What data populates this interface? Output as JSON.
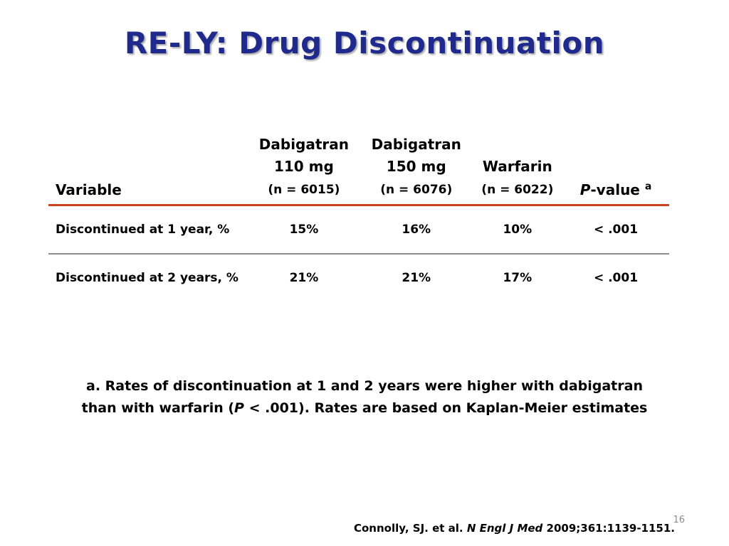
{
  "slide": {
    "title": "RE-LY: Drug Discontinuation",
    "page_number": "16"
  },
  "table": {
    "headers": {
      "variable": "Variable",
      "col1": {
        "line1": "Dabigatran",
        "line2": "110 mg",
        "line3": "(n = 6015)"
      },
      "col2": {
        "line1": "Dabigatran",
        "line2": "150 mg",
        "line3": "(n = 6076)"
      },
      "col3": {
        "line1": "Warfarin",
        "line2": "(n = 6022)"
      },
      "pvalue": {
        "italic": "P",
        "rest": "-value",
        "superscript": "a"
      }
    },
    "rows": [
      {
        "variable": "Discontinued at 1 year, %",
        "dab110": "15%",
        "dab150": "16%",
        "warfarin": "10%",
        "p": "< .001"
      },
      {
        "variable": "Discontinued at 2 years, %",
        "dab110": "21%",
        "dab150": "21%",
        "warfarin": "17%",
        "p": "< .001"
      }
    ],
    "colors": {
      "header_rule": "#c8421c",
      "row_rule": "#8c8c8c"
    }
  },
  "footnote": {
    "line1": "a. Rates of discontinuation at 1 and 2 years were higher with dabigatran",
    "line2_before": "than with warfarin (",
    "line2_italic": "P",
    "line2_after": " < .001). Rates are based on Kaplan-Meier estimates"
  },
  "citation": {
    "authors": "Connolly, SJ. et al. ",
    "journal": "N Engl J Med",
    "details": " 2009;361:1139-1151."
  },
  "colors": {
    "title": "#1f2a8c",
    "background": "#ffffff"
  }
}
